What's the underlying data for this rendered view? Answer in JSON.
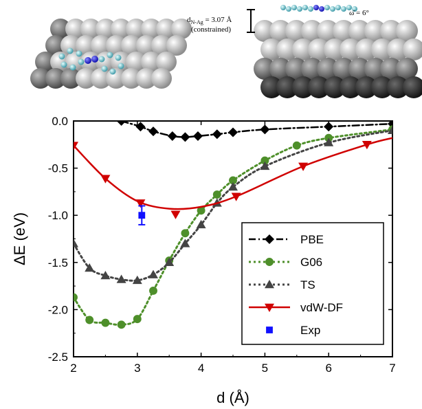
{
  "chart_data": {
    "type": "line",
    "xlabel": "d (Å)",
    "ylabel": "ΔE (eV)",
    "xlim": [
      2,
      7
    ],
    "ylim": [
      -2.5,
      0.0
    ],
    "xticks": [
      "2",
      "3",
      "4",
      "5",
      "6",
      "7"
    ],
    "yticks": [
      "0.0",
      "-0.5",
      "-1.0",
      "-1.5",
      "-2.0",
      "-2.5"
    ],
    "legend_position": "center-right",
    "series": [
      {
        "name": "PBE",
        "color": "#000000",
        "marker": "diamond",
        "line": "dash-dot",
        "x": [
          2.75,
          3.05,
          3.25,
          3.55,
          3.75,
          3.95,
          4.25,
          4.5,
          5.0,
          6.0,
          7.0
        ],
        "y": [
          0.0,
          -0.06,
          -0.11,
          -0.16,
          -0.17,
          -0.16,
          -0.14,
          -0.12,
          -0.09,
          -0.06,
          -0.03
        ]
      },
      {
        "name": "G06",
        "color": "#4e8f2a",
        "marker": "circle",
        "line": "dotted",
        "x": [
          2.0,
          2.25,
          2.5,
          2.75,
          3.0,
          3.25,
          3.5,
          3.75,
          4.0,
          4.25,
          4.5,
          5.0,
          5.5,
          6.0,
          7.0
        ],
        "y": [
          -1.87,
          -2.11,
          -2.14,
          -2.16,
          -2.1,
          -1.8,
          -1.48,
          -1.19,
          -0.95,
          -0.78,
          -0.63,
          -0.42,
          -0.26,
          -0.18,
          -0.09
        ]
      },
      {
        "name": "TS",
        "color": "#444444",
        "marker": "triangle-up",
        "line": "dotted",
        "x": [
          2.0,
          2.25,
          2.5,
          2.75,
          3.0,
          3.25,
          3.5,
          3.75,
          4.0,
          4.25,
          4.5,
          5.0,
          6.0,
          7.0
        ],
        "y": [
          -1.3,
          -1.56,
          -1.64,
          -1.68,
          -1.69,
          -1.63,
          -1.5,
          -1.3,
          -1.1,
          -0.87,
          -0.7,
          -0.48,
          -0.23,
          -0.1
        ]
      },
      {
        "name": "vdW-DF",
        "color": "#d00000",
        "marker": "triangle-down",
        "line": "solid",
        "x": [
          2.0,
          2.5,
          3.05,
          3.6,
          4.55,
          5.6,
          6.6
        ],
        "y": [
          -0.26,
          -0.61,
          -0.87,
          -0.99,
          -0.8,
          -0.48,
          -0.25
        ]
      },
      {
        "name": "Exp",
        "color": "#1010ff",
        "marker": "square",
        "line": "none",
        "x": [
          3.07
        ],
        "y": [
          -1.0
        ],
        "yerr": [
          0.1
        ]
      }
    ]
  },
  "header_panels": {
    "annotation_line1": "d",
    "annotation_sub": "N-Ag",
    "annotation_value": " = 3.07 Å",
    "annotation_line2": "(constrained)",
    "angle_label": "ω̄ = 6°"
  }
}
